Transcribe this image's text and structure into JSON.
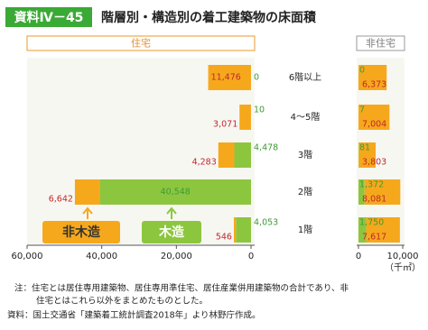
{
  "header": {
    "label": "資料Ⅳ－45",
    "title": "階層別・構造別の着工建築物の床面積"
  },
  "chart_data": [
    {
      "type": "bar",
      "title": "住宅",
      "orientation": "horizontal",
      "stacked": true,
      "categories": [
        "6階以上",
        "4～5階",
        "3階",
        "2階",
        "1階"
      ],
      "series": [
        {
          "name": "木造",
          "color": "#8cc63f",
          "label_color": "#3f9a35",
          "values": [
            0,
            10,
            4478,
            40548,
            4053
          ],
          "value_labels": [
            "0",
            "10",
            "4,478",
            "40,548",
            "4,053"
          ]
        },
        {
          "name": "非木造",
          "color": "#f6a81c",
          "label_color": "#c1272d",
          "values": [
            11476,
            3071,
            4283,
            6642,
            546
          ],
          "value_labels": [
            "11,476",
            "3,071",
            "4,283",
            "6,642",
            "546"
          ]
        }
      ],
      "xlim": [
        60000,
        0
      ],
      "xticks": [
        {
          "value": 60000,
          "label": "60,000"
        },
        {
          "value": 40000,
          "label": "40,000"
        },
        {
          "value": 20000,
          "label": "20,000"
        },
        0
      ]
    },
    {
      "type": "bar",
      "title": "非住宅",
      "orientation": "horizontal",
      "stacked": true,
      "series": [
        {
          "name": "木造",
          "color": "#8cc63f",
          "label_color": "#3f9a35",
          "values": [
            0,
            7,
            81,
            1372,
            1750
          ],
          "value_labels": [
            "0",
            "7",
            "81",
            "1,372",
            "1,750"
          ]
        },
        {
          "name": "非木造",
          "color": "#f6a81c",
          "label_color": "#c1272d",
          "values": [
            6373,
            7004,
            3803,
            8081,
            7617
          ],
          "value_labels": [
            "6,373",
            "7,004",
            "3,803",
            "8,081",
            "7,617"
          ]
        }
      ],
      "xlim": [
        0,
        10000
      ],
      "xticks": [
        0,
        {
          "value": 10000,
          "label": "10,000"
        }
      ],
      "x_label": "（千㎡）"
    }
  ],
  "notes": [
    "注：住宅とは居住専用建築物、居住専用準住宅、居住産業併用建築物の合計であり、非",
    "住宅とはこれら以外をまとめたものとした。"
  ],
  "source": "資料：国土交通省「建築着工統計調査2018年」より林野庁作成。"
}
